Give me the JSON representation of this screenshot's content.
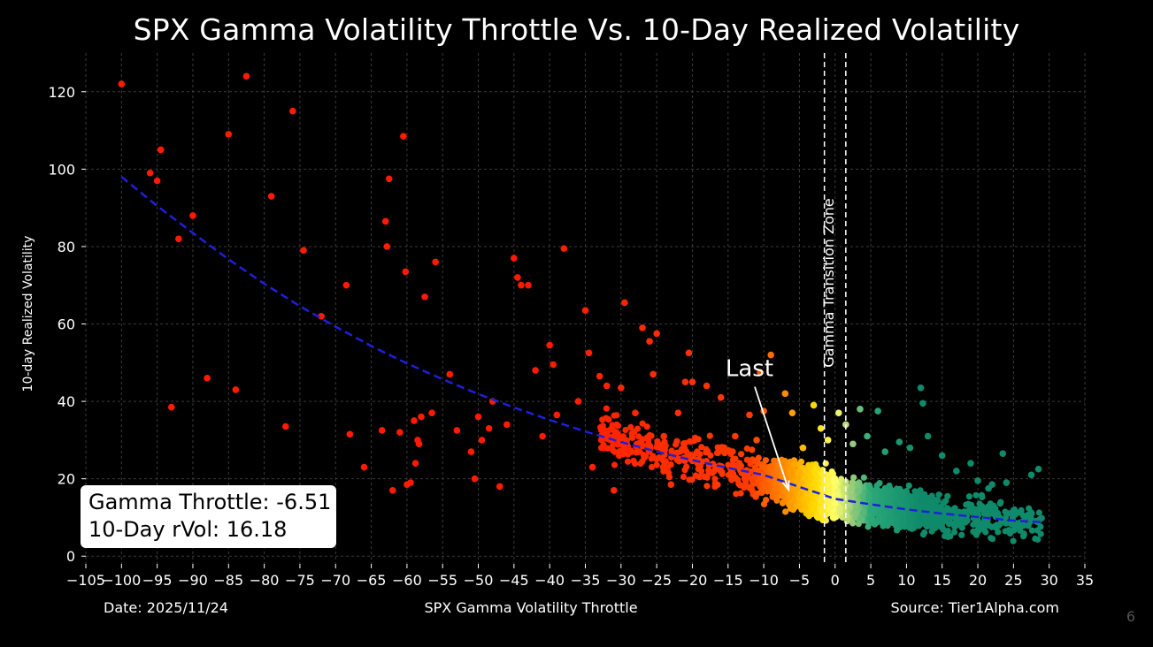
{
  "chart_data": {
    "type": "scatter",
    "title": "SPX Gamma Volatility Throttle Vs. 10-Day Realized Volatility",
    "xlabel": "SPX Gamma Volatility Throttle",
    "ylabel": "10-day Realized Volatility",
    "xlim": [
      -105,
      35
    ],
    "ylim": [
      -2,
      130
    ],
    "xticks": [
      -105,
      -100,
      -95,
      -90,
      -85,
      -80,
      -75,
      -70,
      -65,
      -60,
      -55,
      -50,
      -45,
      -40,
      -35,
      -30,
      -25,
      -20,
      -15,
      -10,
      -5,
      0,
      5,
      10,
      15,
      20,
      25,
      30,
      35
    ],
    "yticks": [
      0,
      20,
      40,
      60,
      80,
      100,
      120
    ],
    "grid": true,
    "highlighted_points": [
      [
        -100,
        122
      ],
      [
        -96,
        99
      ],
      [
        -95,
        97
      ],
      [
        -94.5,
        105
      ],
      [
        -93,
        38.5
      ],
      [
        -92,
        82
      ],
      [
        -90,
        88
      ],
      [
        -88,
        46
      ],
      [
        -85,
        109
      ],
      [
        -84,
        43
      ],
      [
        -82.5,
        124
      ],
      [
        -79,
        93
      ],
      [
        -77,
        33.5
      ],
      [
        -76,
        115
      ],
      [
        -74.5,
        79
      ],
      [
        -72,
        62
      ],
      [
        -68.5,
        70
      ],
      [
        -68,
        31.5
      ],
      [
        -66,
        23
      ],
      [
        -63.5,
        32.5
      ],
      [
        -63,
        86.5
      ],
      [
        -62.8,
        80
      ],
      [
        -62.5,
        97.5
      ],
      [
        -62,
        17
      ],
      [
        -61,
        32
      ],
      [
        -60.5,
        108.5
      ],
      [
        -60.2,
        73.5
      ],
      [
        -60,
        18.5
      ],
      [
        -59.5,
        19
      ],
      [
        -59,
        35
      ],
      [
        -58.8,
        24
      ],
      [
        -58.5,
        30
      ],
      [
        -58.3,
        29
      ],
      [
        -58,
        36
      ],
      [
        -57.5,
        67
      ],
      [
        -56.5,
        37
      ],
      [
        -56,
        76
      ],
      [
        -54,
        47
      ],
      [
        -53,
        32.5
      ],
      [
        -51,
        27
      ],
      [
        -50.5,
        20
      ],
      [
        -50,
        36
      ],
      [
        -49.5,
        30
      ],
      [
        -48.5,
        33
      ],
      [
        -48,
        40
      ],
      [
        -47,
        18
      ],
      [
        -46,
        34
      ],
      [
        -45,
        77
      ],
      [
        -44.5,
        72
      ],
      [
        -44,
        70
      ],
      [
        -43,
        70
      ],
      [
        -42,
        48
      ],
      [
        -41,
        31
      ],
      [
        -40,
        54.5
      ],
      [
        -39.5,
        49.5
      ],
      [
        -39,
        36.5
      ],
      [
        -38,
        79.5
      ],
      [
        -36,
        40
      ],
      [
        -35,
        63.5
      ],
      [
        -34.5,
        52.5
      ],
      [
        -34,
        23
      ],
      [
        -33,
        46.5
      ],
      [
        -32,
        44
      ],
      [
        -31,
        17
      ],
      [
        -30,
        43.5
      ],
      [
        -29.5,
        65.5
      ],
      [
        -28,
        37
      ],
      [
        -27,
        59
      ],
      [
        -26,
        55.5
      ],
      [
        -25.5,
        47
      ],
      [
        -25,
        57.5
      ],
      [
        -24,
        31
      ],
      [
        -23,
        18.5
      ],
      [
        -22,
        37
      ],
      [
        -21,
        45
      ],
      [
        -20.5,
        52.5
      ],
      [
        -20,
        45
      ],
      [
        -19,
        20.5
      ],
      [
        -18,
        44
      ],
      [
        -16,
        41
      ],
      [
        -14,
        31
      ],
      [
        -12,
        36.5
      ],
      [
        -11,
        30
      ],
      [
        -10.5,
        47.5
      ],
      [
        -10,
        37.5
      ],
      [
        -9,
        52
      ],
      [
        -7,
        42
      ],
      [
        -6,
        37
      ],
      [
        -4.5,
        28
      ],
      [
        -3,
        39
      ],
      [
        -2,
        33
      ],
      [
        -1,
        30
      ],
      [
        0.5,
        37
      ],
      [
        1.5,
        34
      ],
      [
        2.5,
        29
      ],
      [
        3.5,
        38
      ],
      [
        4.5,
        31
      ],
      [
        6,
        37.5
      ],
      [
        7,
        27
      ],
      [
        9,
        29.5
      ],
      [
        10.5,
        28
      ],
      [
        12,
        43.5
      ],
      [
        12.3,
        39.5
      ],
      [
        13,
        31
      ],
      [
        15,
        26
      ],
      [
        17,
        22
      ],
      [
        19,
        24
      ],
      [
        22,
        18.5
      ],
      [
        23.5,
        26.5
      ],
      [
        26,
        11.5
      ],
      [
        27.5,
        21
      ],
      [
        28.5,
        22.5
      ],
      [
        20,
        19.5
      ],
      [
        21.5,
        17.5
      ],
      [
        24,
        19
      ]
    ],
    "fit_line": {
      "style": "dashed",
      "color": "#1f1fdd",
      "x": [
        -100,
        -95,
        -90,
        -85,
        -80,
        -75,
        -70,
        -65,
        -60,
        -55,
        -50,
        -45,
        -40,
        -35,
        -30,
        -25,
        -20,
        -15,
        -10,
        -5,
        0,
        5,
        10,
        15,
        20,
        25,
        29
      ],
      "y": [
        98,
        90.5,
        83.5,
        76.7,
        70.4,
        64.6,
        59.3,
        54.3,
        49.8,
        45.7,
        41.9,
        38.4,
        35.2,
        32.2,
        29.5,
        27,
        24.8,
        22.8,
        21,
        17.9,
        14.8,
        13.4,
        12.1,
        11,
        10.1,
        9.2,
        8.8
      ]
    },
    "cloud": {
      "x_range": [
        -33,
        29
      ],
      "center_y": 16,
      "gradient_colors": [
        "#ff1a00",
        "#ff3b00",
        "#ff8c00",
        "#ffd800",
        "#ffff6a",
        "#a8d27a",
        "#2aa878",
        "#0f8a6a"
      ],
      "gradient_stops_x": [
        -40,
        -12,
        -7,
        -3,
        0,
        2,
        5,
        12
      ]
    },
    "vertical_lines": [
      -1.5,
      1.5
    ],
    "zone_label": "Gamma Transition Zone",
    "annotation": {
      "text": "Last",
      "x": -6.51,
      "y": 16.18,
      "text_x": -12,
      "text_y": 46.5
    },
    "info_box": {
      "line1": "Gamma Throttle: -6.51",
      "line2": "10-Day rVol: 16.18"
    }
  },
  "footer": {
    "date": "Date: 2025/11/24",
    "source": "Source: Tier1Alpha.com",
    "page": "6"
  },
  "colors": {
    "background": "#000000",
    "grid": "#3a3a3a",
    "fit_line": "#1f1fdd",
    "highlight_red": "#ff1500"
  }
}
